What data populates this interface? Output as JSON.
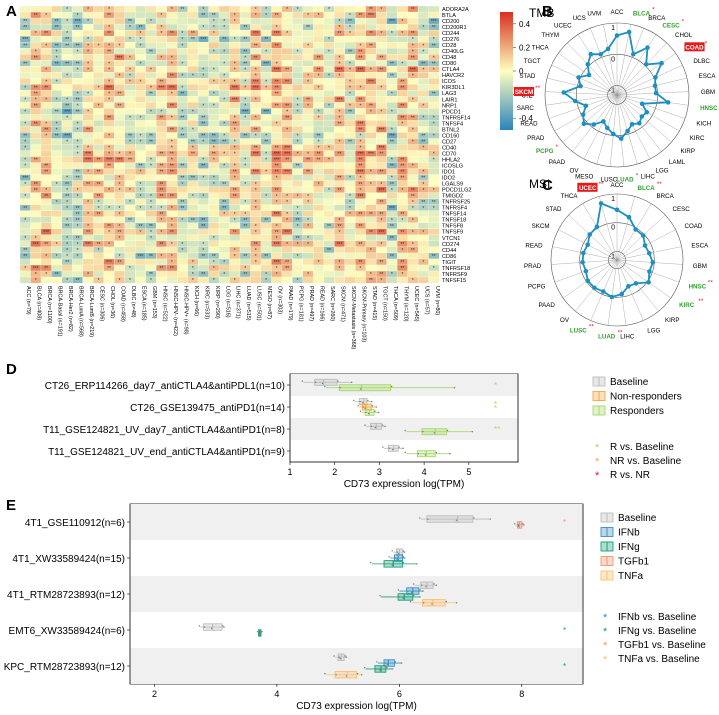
{
  "colors": {
    "hi": "#d7301f",
    "mid": "#ffffbf",
    "lo": "#2b83ba",
    "grid": "#ffffff",
    "radar": "#1f8fbf",
    "red": "#e41a1c",
    "green": "#33a02c",
    "baseline": "#bdbdbd",
    "nonresp": "#f4a742",
    "resp": "#a6d96a",
    "ifnb": "#3c8fc4",
    "ifng": "#1b9e77",
    "tgfb1": "#f0956b",
    "tnfa": "#fdbf6f"
  },
  "panels": {
    "a": "A",
    "b": "B",
    "c": "C",
    "d": "D",
    "e": "E"
  },
  "chart_data": [
    {
      "type": "heatmap",
      "panel": "A",
      "rows": [
        "ADORA2A",
        "BTLA",
        "CD200",
        "CD200R1",
        "CD244",
        "CD276",
        "CD28",
        "CD40LG",
        "CD48",
        "CD80",
        "CTLA4",
        "HAVCR2",
        "ICOS",
        "KIR3DL1",
        "LAG3",
        "LAIR1",
        "NRP1",
        "PDCD1",
        "TNFRSF14",
        "TNFSF4",
        "BTNL2",
        "CD160",
        "CD27",
        "CD40",
        "CD70",
        "HHLA2",
        "ICOSLG",
        "IDO1",
        "IDO2",
        "LGALS9",
        "PDCD1LG2",
        "TMIGD2",
        "TNFRSF25",
        "TNFRSF4",
        "TNFSF14",
        "TNFSF18",
        "TNFSF8",
        "TNFSF9",
        "VTCN1",
        "CD274",
        "CD44",
        "CD86",
        "TIGIT",
        "TNFRSF18",
        "TNFRSF9",
        "TNFSF15"
      ],
      "columns": [
        "ACC (n=79)",
        "BLCA (n=408)",
        "BRCA (n=1100)",
        "BRCA-Basal (n=191)",
        "BRCA-Her2 (n=82)",
        "BRCA-LumA (n=568)",
        "BRCA-LumB (n=219)",
        "CESC (n=306)",
        "CHOL (n=36)",
        "COAD (n=458)",
        "DLBC (n=48)",
        "ESCA (n=185)",
        "GBM (n=153)",
        "HNSC (n=522)",
        "HNSC-HPV- (n=422)",
        "HNSC-HPV+ (n=98)",
        "KICH (n=66)",
        "KIRC (n=533)",
        "KIRP (n=290)",
        "LGG (n=516)",
        "LIHC (n=371)",
        "LUAD (n=515)",
        "LUSC (n=501)",
        "MESO (n=87)",
        "OV (n=303)",
        "PAAD (n=179)",
        "PCPG (n=181)",
        "PRAD (n=497)",
        "READ (n=166)",
        "SARC (n=260)",
        "SKCM (n=471)",
        "SKCM-Metastasis (n=368)",
        "SKCM-Primary (n=103)",
        "STAD (n=415)",
        "TGCT (n=150)",
        "THCA (n=509)",
        "THYM (n=120)",
        "UCEC (n=545)",
        "UCS (n=57)",
        "UVM (n=80)"
      ],
      "legend": {
        "ticks": [
          0.4,
          0.2,
          0,
          -0.2,
          -0.4
        ]
      }
    },
    {
      "type": "radar",
      "panel": "B",
      "title": "TMB",
      "rlabels": [
        "1",
        "0",
        "-1"
      ],
      "axes": [
        "ACC",
        "BLCA",
        "BRCA",
        "CESC",
        "CHOL",
        "COAD",
        "DLBC",
        "ESCA",
        "GBM",
        "HNSC",
        "KICH",
        "KIRC",
        "KIRP",
        "LAML",
        "LGG",
        "LIHC",
        "LUAD",
        "LUSC",
        "MESO",
        "OV",
        "PAAD",
        "PCPG",
        "PRAD",
        "READ",
        "SARC",
        "SKCM",
        "STAD",
        "TGCT",
        "THCA",
        "THYM",
        "UCEC",
        "UCS",
        "UVM"
      ],
      "values": [
        0.6,
        0.75,
        0.1,
        0.5,
        0.05,
        0.45,
        0.05,
        -0.05,
        -0.05,
        0.35,
        -0.45,
        -0.2,
        -0.25,
        -0.15,
        -0.25,
        -0.1,
        0.1,
        -0.05,
        -0.2,
        -0.35,
        -0.1,
        0.1,
        -0.05,
        -0.25,
        0.05,
        0.4,
        -0.1,
        0.05,
        -0.2,
        0.05,
        0.25,
        0.1,
        0.2
      ],
      "red": [
        "COAD",
        "SKCM"
      ],
      "green": [
        "BLCA",
        "CESC",
        "HNSC",
        "LUAD",
        "PCPG"
      ],
      "sig": {
        "BLCA": "*",
        "CESC": "*",
        "COAD": "*",
        "SKCM": "**",
        "HNSC": "**",
        "LUAD": "*",
        "PCPG": "*"
      }
    },
    {
      "type": "radar",
      "panel": "C",
      "title": "MSI",
      "rlabels": [
        "1",
        "0",
        "-1"
      ],
      "axes": [
        "ACC",
        "BLCA",
        "BRCA",
        "CESC",
        "COAD",
        "ESCA",
        "GBM",
        "HNSC",
        "KIRC",
        "KIRP",
        "LGG",
        "LIHC",
        "LUAD",
        "LUSC",
        "OV",
        "PAAD",
        "PCPG",
        "PRAD",
        "READ",
        "SKCM",
        "STAD",
        "THCA",
        "UCEC"
      ],
      "values": [
        0.45,
        0.25,
        -0.05,
        -0.05,
        -0.2,
        -0.15,
        -0.05,
        -0.1,
        0.05,
        -0.25,
        -0.3,
        -0.1,
        0.0,
        -0.1,
        -0.05,
        -0.05,
        -0.15,
        -0.1,
        -0.1,
        -0.15,
        0.0,
        0.05,
        0.75
      ],
      "red": [
        "UCEC"
      ],
      "green": [
        "BLCA",
        "HNSC",
        "KIRC",
        "LUAD",
        "LUSC"
      ],
      "sig": {
        "UCEC": "**",
        "BLCA": "**",
        "HNSC": "**",
        "KIRC": "**",
        "LUAD": "**",
        "LUSC": "**"
      }
    },
    {
      "type": "box",
      "panel": "D",
      "xlabel": "CD73 expression log(TPM)",
      "xlim": [
        1.0,
        6.1
      ],
      "xticks": [
        1,
        2,
        3,
        4,
        5
      ],
      "legend": [
        {
          "key": "baseline",
          "label": "Baseline"
        },
        {
          "key": "nonresp",
          "label": "Non-responders"
        },
        {
          "key": "resp",
          "label": "Responders"
        }
      ],
      "siglegend": [
        {
          "key": "resp",
          "label": "R vs. Baseline"
        },
        {
          "key": "nonresp",
          "label": "NR vs. Baseline"
        },
        {
          "key": "red",
          "label": "R vs. NR"
        }
      ],
      "groups": [
        {
          "label": "CT26_ERP114266_day7_antiCTLA4&antiPDL1(n=10)",
          "boxes": [
            {
              "g": "baseline",
              "min": 1.3,
              "q1": 1.55,
              "med": 1.75,
              "q3": 2.05,
              "max": 2.4
            },
            {
              "g": "resp",
              "min": 1.8,
              "q1": 2.1,
              "med": 2.6,
              "q3": 3.25,
              "max": 4.7
            }
          ],
          "sig": [
            {
              "c": "resp",
              "t": "*"
            }
          ]
        },
        {
          "label": "CT26_GSE139475_antiPD1(n=14)",
          "boxes": [
            {
              "g": "baseline",
              "min": 2.45,
              "q1": 2.55,
              "med": 2.65,
              "q3": 2.72,
              "max": 2.85
            },
            {
              "g": "nonresp",
              "min": 2.55,
              "q1": 2.62,
              "med": 2.7,
              "q3": 2.82,
              "max": 2.95
            },
            {
              "g": "resp",
              "min": 2.6,
              "q1": 2.68,
              "med": 2.78,
              "q3": 2.88,
              "max": 3.0
            }
          ],
          "sig": [
            {
              "c": "resp",
              "t": "*"
            },
            {
              "c": "nonresp",
              "t": "*"
            }
          ]
        },
        {
          "label": "T11_GSE124821_UV_day7_antiCTLA4&antiPD1(n=8)",
          "boxes": [
            {
              "g": "baseline",
              "min": 2.7,
              "q1": 2.8,
              "med": 2.93,
              "q3": 3.05,
              "max": 3.15
            },
            {
              "g": "resp",
              "min": 3.6,
              "q1": 3.95,
              "med": 4.25,
              "q3": 4.5,
              "max": 5.1
            }
          ],
          "sig": [
            {
              "c": "resp",
              "t": "**"
            }
          ]
        },
        {
          "label": "T11_GSE124821_UV_end_antiCTLA4&antiPD1(n=9)",
          "boxes": [
            {
              "g": "baseline",
              "min": 3.1,
              "q1": 3.2,
              "med": 3.32,
              "q3": 3.42,
              "max": 3.55
            },
            {
              "g": "resp",
              "min": 3.6,
              "q1": 3.85,
              "med": 4.05,
              "q3": 4.25,
              "max": 4.6
            }
          ],
          "sig": []
        }
      ]
    },
    {
      "type": "box",
      "panel": "E",
      "xlabel": "CD73 expression log(TPM)",
      "xlim": [
        1.6,
        9.0
      ],
      "xticks": [
        2,
        4,
        6,
        8
      ],
      "legend": [
        {
          "key": "baseline",
          "label": "Baseline"
        },
        {
          "key": "ifnb",
          "label": "IFNb"
        },
        {
          "key": "ifng",
          "label": "IFNg"
        },
        {
          "key": "tgfb1",
          "label": "TGFb1"
        },
        {
          "key": "tnfa",
          "label": "TNFa"
        }
      ],
      "siglegend": [
        {
          "key": "ifnb",
          "label": "IFNb vs. Baseline"
        },
        {
          "key": "ifng",
          "label": "IFNg vs. Baseline"
        },
        {
          "key": "tgfb1",
          "label": "TGFb1 vs. Baseline"
        },
        {
          "key": "tnfa",
          "label": "TNFa vs. Baseline"
        }
      ],
      "groups": [
        {
          "label": "4T1_GSE110912(n=6)",
          "boxes": [
            {
              "g": "baseline",
              "min": 6.35,
              "q1": 6.45,
              "med": 6.95,
              "q3": 7.2,
              "max": 7.5
            },
            {
              "g": "tgfb1",
              "min": 7.9,
              "q1": 7.93,
              "med": 7.96,
              "q3": 8.0,
              "max": 8.05
            }
          ],
          "sig": [
            {
              "c": "tgfb1",
              "t": "*"
            }
          ]
        },
        {
          "label": "4T1_XW33589424(n=15)",
          "boxes": [
            {
              "g": "baseline",
              "min": 5.9,
              "q1": 5.95,
              "med": 6.0,
              "q3": 6.05,
              "max": 6.1
            },
            {
              "g": "ifnb",
              "min": 5.85,
              "q1": 5.92,
              "med": 5.98,
              "q3": 6.05,
              "max": 6.1
            },
            {
              "g": "ifng",
              "min": 5.55,
              "q1": 5.75,
              "med": 5.9,
              "q3": 6.05,
              "max": 6.3
            }
          ],
          "sig": []
        },
        {
          "label": "4T1_RTM28723893(n=12)",
          "boxes": [
            {
              "g": "baseline",
              "min": 6.25,
              "q1": 6.35,
              "med": 6.45,
              "q3": 6.55,
              "max": 6.62
            },
            {
              "g": "ifnb",
              "min": 6.0,
              "q1": 6.12,
              "med": 6.22,
              "q3": 6.32,
              "max": 6.4
            },
            {
              "g": "ifng",
              "min": 5.7,
              "q1": 5.98,
              "med": 6.08,
              "q3": 6.22,
              "max": 6.35
            },
            {
              "g": "tnfa",
              "min": 6.2,
              "q1": 6.38,
              "med": 6.55,
              "q3": 6.75,
              "max": 6.95
            }
          ],
          "sig": []
        },
        {
          "label": "EMT6_XW33589424(n=6)",
          "boxes": [
            {
              "g": "baseline",
              "min": 2.75,
              "q1": 2.8,
              "med": 2.95,
              "q3": 3.1,
              "max": 3.15
            },
            {
              "g": "ifng",
              "min": 3.7,
              "q1": 3.7,
              "med": 3.72,
              "q3": 3.74,
              "max": 3.75
            }
          ],
          "sig": [
            {
              "c": "ifng",
              "t": "*"
            }
          ]
        },
        {
          "label": "KPC_RTM28723893(n=12)",
          "boxes": [
            {
              "g": "baseline",
              "min": 4.95,
              "q1": 5.0,
              "med": 5.05,
              "q3": 5.1,
              "max": 5.15
            },
            {
              "g": "ifnb",
              "min": 5.65,
              "q1": 5.75,
              "med": 5.82,
              "q3": 5.92,
              "max": 6.05
            },
            {
              "g": "ifng",
              "min": 5.45,
              "q1": 5.6,
              "med": 5.7,
              "q3": 5.78,
              "max": 5.9
            },
            {
              "g": "tnfa",
              "min": 4.8,
              "q1": 4.95,
              "med": 5.15,
              "q3": 5.3,
              "max": 5.4
            }
          ],
          "sig": [
            {
              "c": "ifng",
              "t": "*"
            }
          ]
        }
      ]
    }
  ]
}
